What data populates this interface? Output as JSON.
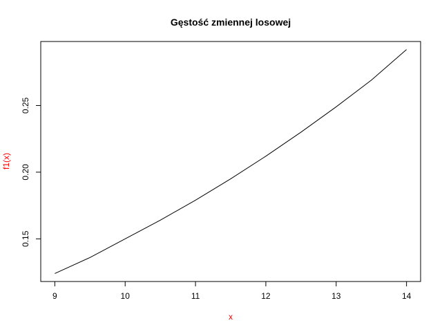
{
  "chart_data": {
    "type": "line",
    "title": "Gęstość zmiennej losowej",
    "xlabel": "x",
    "ylabel": "f1(x)",
    "label_color": "#ff0000",
    "line_color": "#000000",
    "xlim": [
      8.8,
      14.2
    ],
    "ylim": [
      0.118,
      0.298
    ],
    "x_ticks": [
      9,
      10,
      11,
      12,
      13,
      14
    ],
    "x_tick_labels": [
      "9",
      "10",
      "11",
      "12",
      "13",
      "14"
    ],
    "y_ticks": [
      0.15,
      0.2,
      0.25
    ],
    "y_tick_labels": [
      "0.15",
      "0.20",
      "0.25"
    ],
    "grid": false,
    "legend": "none",
    "series": [
      {
        "x": [
          9,
          9.5,
          10,
          10.5,
          11,
          11.5,
          12,
          12.5,
          13,
          13.5,
          14
        ],
        "y": [
          0.124,
          0.136,
          0.15,
          0.164,
          0.179,
          0.195,
          0.212,
          0.23,
          0.249,
          0.269,
          0.292
        ]
      }
    ]
  }
}
